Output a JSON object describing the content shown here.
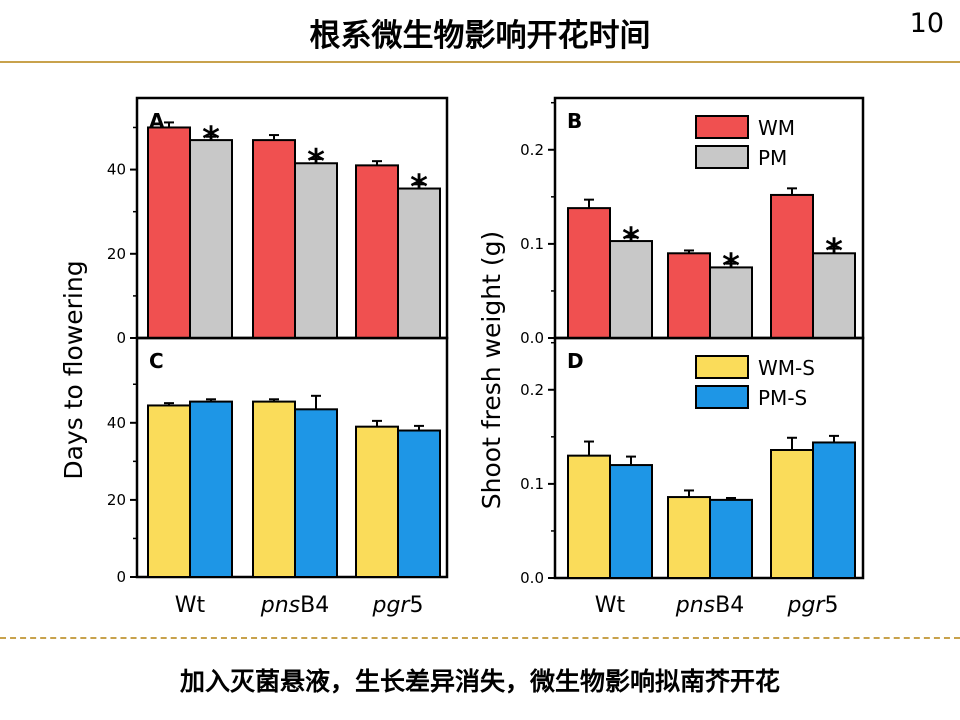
{
  "slide": {
    "title": "根系微生物影响开花时间",
    "page_number": "10",
    "conclusion": "加入灭菌悬液，生长差异消失，微生物影响拟南芥开花",
    "rule_color": "#c8a24c"
  },
  "chart_data": [
    {
      "panel": "A",
      "type": "bar",
      "categories": [
        "Wt",
        "pnsB4",
        "pgr5"
      ],
      "ylabel": "Days to flowering",
      "ylim": [
        0,
        57
      ],
      "yticks": [
        0,
        20,
        40
      ],
      "series": [
        {
          "name": "WM",
          "color": "#f05050",
          "values": [
            50,
            47,
            41
          ],
          "errors": [
            1.2,
            1.2,
            1.0
          ]
        },
        {
          "name": "PM",
          "color": "#c8c8c8",
          "values": [
            47,
            41.5,
            35.5
          ],
          "errors": [
            0.8,
            1.0,
            1.0
          ]
        }
      ],
      "significance": [
        {
          "category": "Wt",
          "series": "PM",
          "mark": "*"
        },
        {
          "category": "pnsB4",
          "series": "PM",
          "mark": "*"
        },
        {
          "category": "pgr5",
          "series": "PM",
          "mark": "*"
        }
      ]
    },
    {
      "panel": "B",
      "type": "bar",
      "categories": [
        "Wt",
        "pnsB4",
        "pgr5"
      ],
      "ylabel": "Shoot fresh weight (g)",
      "ylim": [
        0,
        0.255
      ],
      "yticks": [
        0.0,
        0.1,
        0.2
      ],
      "legend": "top-right",
      "series": [
        {
          "name": "WM",
          "color": "#f05050",
          "values": [
            0.138,
            0.09,
            0.152
          ],
          "errors": [
            0.009,
            0.003,
            0.007
          ]
        },
        {
          "name": "PM",
          "color": "#c8c8c8",
          "values": [
            0.103,
            0.075,
            0.09
          ],
          "errors": [
            0.004,
            0.004,
            0.005
          ]
        }
      ],
      "significance": [
        {
          "category": "Wt",
          "series": "PM",
          "mark": "*"
        },
        {
          "category": "pnsB4",
          "series": "PM",
          "mark": "*"
        },
        {
          "category": "pgr5",
          "series": "PM",
          "mark": "*"
        }
      ]
    },
    {
      "panel": "C",
      "type": "bar",
      "categories": [
        "Wt",
        "pnsB4",
        "pgr5"
      ],
      "ylabel": "Days to flowering",
      "ylim": [
        0,
        62
      ],
      "yticks": [
        0,
        20,
        40
      ],
      "series": [
        {
          "name": "WM-S",
          "color": "#fadc5a",
          "values": [
            44.5,
            45.5,
            39
          ],
          "errors": [
            0.6,
            0.6,
            1.5
          ]
        },
        {
          "name": "PM-S",
          "color": "#1e96e6",
          "values": [
            45.5,
            43.5,
            38
          ],
          "errors": [
            0.6,
            3.5,
            1.2
          ]
        }
      ]
    },
    {
      "panel": "D",
      "type": "bar",
      "categories": [
        "Wt",
        "pnsB4",
        "pgr5"
      ],
      "ylabel": "Shoot fresh weight (g)",
      "ylim": [
        0,
        0.255
      ],
      "yticks": [
        0.0,
        0.1,
        0.2
      ],
      "legend": "top-right",
      "series": [
        {
          "name": "WM-S",
          "color": "#fadc5a",
          "values": [
            0.13,
            0.086,
            0.136
          ],
          "errors": [
            0.015,
            0.007,
            0.013
          ]
        },
        {
          "name": "PM-S",
          "color": "#1e96e6",
          "values": [
            0.12,
            0.083,
            0.144
          ],
          "errors": [
            0.009,
            0.002,
            0.007
          ]
        }
      ]
    }
  ],
  "category_labels": [
    {
      "italic": "",
      "roman": "Wt"
    },
    {
      "italic": "pns",
      "roman": "B4"
    },
    {
      "italic": "pgr",
      "roman": "5"
    }
  ]
}
